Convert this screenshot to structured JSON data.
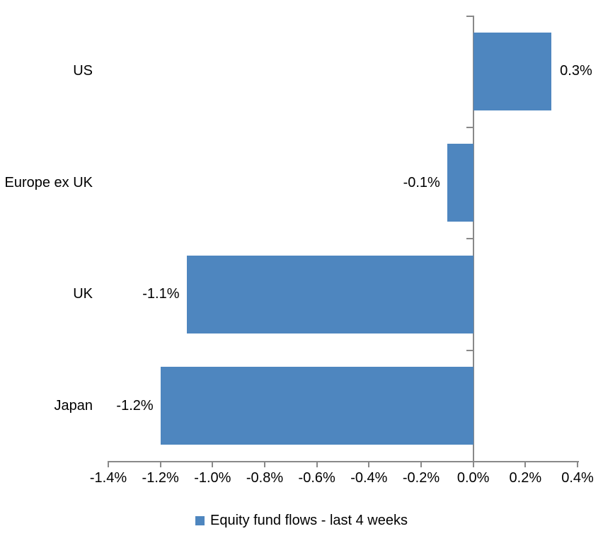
{
  "chart_data": {
    "type": "bar",
    "orientation": "horizontal",
    "categories": [
      "US",
      "Europe ex UK",
      "UK",
      "Japan"
    ],
    "series": [
      {
        "name": "Equity fund flows - last 4 weeks",
        "values": [
          0.3,
          -0.1,
          -1.1,
          -1.2
        ],
        "data_labels": [
          "0.3%",
          "-0.1%",
          "-1.1%",
          "-1.2%"
        ]
      }
    ],
    "xlim": [
      -1.4,
      0.4
    ],
    "x_ticks": [
      {
        "value": -1.4,
        "label": "-1.4%"
      },
      {
        "value": -1.2,
        "label": "-1.2%"
      },
      {
        "value": -1.0,
        "label": "-1.0%"
      },
      {
        "value": -0.8,
        "label": "-0.8%"
      },
      {
        "value": -0.6,
        "label": "-0.6%"
      },
      {
        "value": -0.4,
        "label": "-0.4%"
      },
      {
        "value": -0.2,
        "label": "-0.2%"
      },
      {
        "value": 0.0,
        "label": "0.0%"
      },
      {
        "value": 0.2,
        "label": "0.2%"
      },
      {
        "value": 0.4,
        "label": "0.4%"
      }
    ],
    "grid": false,
    "legend_position": "bottom",
    "bar_color": "#4e86bf",
    "axis_color": "#898989",
    "text_color": "#000000",
    "background_color": "#ffffff"
  },
  "legend": {
    "label": "Equity fund flows - last 4 weeks"
  }
}
